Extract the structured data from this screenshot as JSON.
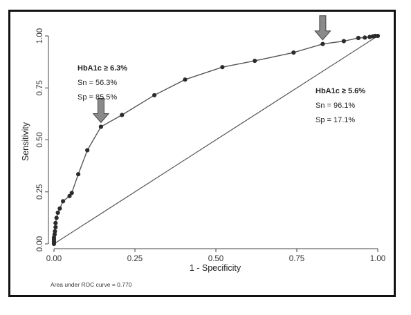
{
  "chart_data": {
    "type": "line",
    "xlabel": "1 - Specificity",
    "ylabel": "Sensitivity",
    "xlim": [
      0,
      1
    ],
    "ylim": [
      0,
      1
    ],
    "xticks": [
      "0.00",
      "0.25",
      "0.50",
      "0.75",
      "1.00"
    ],
    "yticks": [
      "0.00",
      "0.25",
      "0.50",
      "0.75",
      "1.00"
    ],
    "grid": false,
    "legend": "none",
    "series": [
      {
        "points": [
          [
            0.0,
            0.0
          ],
          [
            0.0,
            0.01
          ],
          [
            0.0,
            0.02
          ],
          [
            0.0,
            0.03
          ],
          [
            0.002,
            0.045
          ],
          [
            0.003,
            0.06
          ],
          [
            0.005,
            0.08
          ],
          [
            0.005,
            0.1
          ],
          [
            0.008,
            0.125
          ],
          [
            0.012,
            0.15
          ],
          [
            0.018,
            0.17
          ],
          [
            0.028,
            0.205
          ],
          [
            0.048,
            0.23
          ],
          [
            0.055,
            0.245
          ],
          [
            0.075,
            0.335
          ],
          [
            0.103,
            0.45
          ],
          [
            0.145,
            0.563
          ],
          [
            0.21,
            0.62
          ],
          [
            0.31,
            0.715
          ],
          [
            0.405,
            0.79
          ],
          [
            0.52,
            0.85
          ],
          [
            0.62,
            0.88
          ],
          [
            0.74,
            0.92
          ],
          [
            0.83,
            0.961
          ],
          [
            0.895,
            0.975
          ],
          [
            0.94,
            0.99
          ],
          [
            0.96,
            0.992
          ],
          [
            0.975,
            0.995
          ],
          [
            0.985,
            0.998
          ],
          [
            0.992,
            1.0
          ],
          [
            1.0,
            1.0
          ]
        ]
      }
    ],
    "reference_line": [
      [
        0,
        0
      ],
      [
        1,
        1
      ]
    ],
    "annotations": [
      {
        "title": "HbA1c ≥ 6.3%",
        "sn": "Sn = 56.3%",
        "sp": "Sp = 85.5%",
        "point": [
          0.145,
          0.563
        ]
      },
      {
        "title": "HbA1c ≥ 5.6%",
        "sn": "Sn = 96.1%",
        "sp": "Sp = 17.1%",
        "point": [
          0.83,
          0.961
        ]
      }
    ],
    "note": "Area under ROC curve = 0.770"
  },
  "colors": {
    "curve": "#555555",
    "marker": "#2b2b2b",
    "reference": "#555555",
    "arrow_fill": "#8a8a8a",
    "arrow_stroke": "#444444"
  }
}
